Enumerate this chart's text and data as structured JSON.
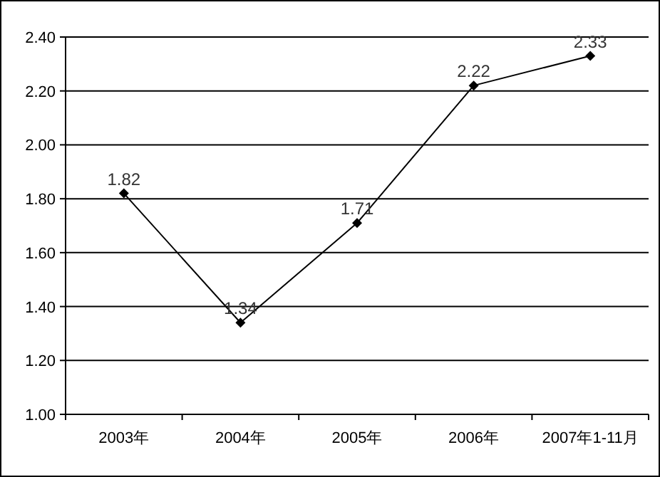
{
  "chart_data": {
    "type": "line",
    "categories": [
      "2003年",
      "2004年",
      "2005年",
      "2006年",
      "2007年1-11月"
    ],
    "series": [
      {
        "color": "#000000",
        "values": [
          1.82,
          1.34,
          1.71,
          2.22,
          2.33
        ]
      }
    ],
    "ylim": [
      1.0,
      2.4
    ],
    "yticks": [
      {
        "value": 1.0,
        "label": "1.00"
      },
      {
        "value": 1.2,
        "label": "1.20"
      },
      {
        "value": 1.4,
        "label": "1.40"
      },
      {
        "value": 1.6,
        "label": "1.60"
      },
      {
        "value": 1.8,
        "label": "1.80"
      },
      {
        "value": 2.0,
        "label": "2.00"
      },
      {
        "value": 2.2,
        "label": "2.20"
      },
      {
        "value": 2.4,
        "label": "2.40"
      }
    ],
    "grid": "y",
    "marker": "diamond",
    "line_style": "solid",
    "data_labels": true
  }
}
